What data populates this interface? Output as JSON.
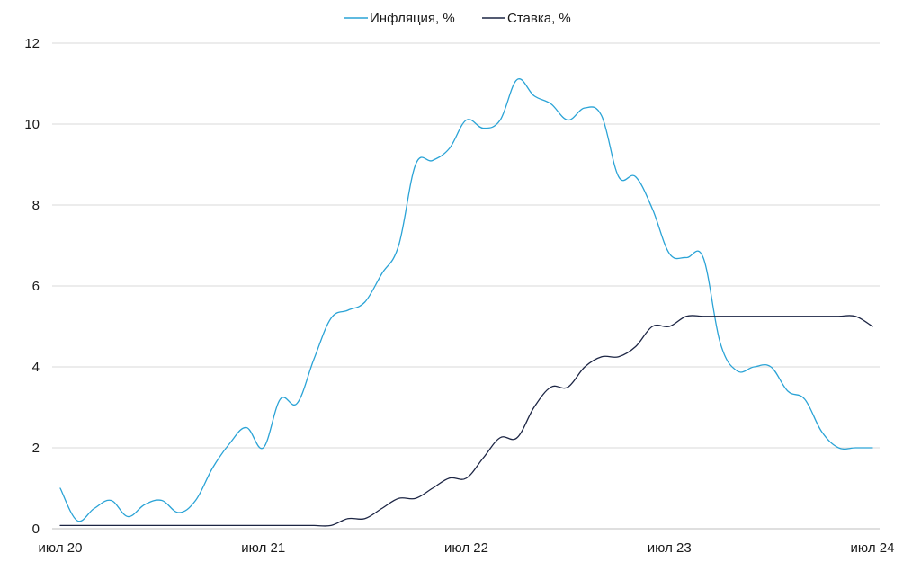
{
  "chart_data": {
    "type": "line",
    "title": "",
    "xlabel": "",
    "ylabel": "",
    "ylim": [
      0,
      12
    ],
    "y_ticks": [
      0,
      2,
      4,
      6,
      8,
      10,
      12
    ],
    "x_tick_labels": [
      "июл 20",
      "июл 21",
      "июл 22",
      "июл 23",
      "июл 24"
    ],
    "x_unit": "month index from Jul 2020 (0 = июл 20, 48 = июл 24)",
    "grid": "horizontal",
    "legend_position": "top-center",
    "series": [
      {
        "name": "Инфляция, %",
        "color": "#2aa3d6",
        "x": [
          0,
          1,
          2,
          3,
          4,
          5,
          6,
          7,
          8,
          9,
          10,
          11,
          12,
          13,
          14,
          15,
          16,
          17,
          18,
          19,
          20,
          21,
          22,
          23,
          24,
          25,
          26,
          27,
          28,
          29,
          30,
          31,
          32,
          33,
          34,
          35,
          36,
          37,
          38,
          39,
          40,
          41,
          42,
          43,
          44,
          45,
          46,
          47,
          48
        ],
        "values": [
          1.0,
          0.2,
          0.5,
          0.7,
          0.3,
          0.6,
          0.7,
          0.4,
          0.7,
          1.5,
          2.1,
          2.5,
          2.0,
          3.2,
          3.1,
          4.2,
          5.2,
          5.4,
          5.6,
          6.3,
          7.0,
          9.0,
          9.1,
          9.4,
          10.1,
          9.9,
          10.1,
          11.1,
          10.7,
          10.5,
          10.1,
          10.4,
          10.2,
          8.7,
          8.7,
          7.9,
          6.8,
          6.7,
          6.7,
          4.6,
          3.9,
          4.0,
          4.0,
          3.4,
          3.2,
          2.4,
          2.0,
          2.0,
          2.0
        ]
      },
      {
        "name": "Ставка, %",
        "color": "#1c2544",
        "x": [
          0,
          1,
          2,
          3,
          4,
          5,
          6,
          7,
          8,
          9,
          10,
          11,
          12,
          13,
          14,
          15,
          16,
          17,
          18,
          19,
          20,
          21,
          22,
          23,
          24,
          25,
          26,
          27,
          28,
          29,
          30,
          31,
          32,
          33,
          34,
          35,
          36,
          37,
          38,
          39,
          40,
          41,
          42,
          43,
          44,
          45,
          46,
          47,
          48
        ],
        "values": [
          0.08,
          0.08,
          0.08,
          0.08,
          0.08,
          0.08,
          0.08,
          0.08,
          0.08,
          0.08,
          0.08,
          0.08,
          0.08,
          0.08,
          0.08,
          0.08,
          0.08,
          0.25,
          0.25,
          0.5,
          0.75,
          0.75,
          1.0,
          1.25,
          1.25,
          1.75,
          2.25,
          2.25,
          3.0,
          3.5,
          3.5,
          4.0,
          4.25,
          4.25,
          4.5,
          5.0,
          5.0,
          5.25,
          5.25,
          5.25,
          5.25,
          5.25,
          5.25,
          5.25,
          5.25,
          5.25,
          5.25,
          5.25,
          5.0
        ]
      }
    ]
  }
}
